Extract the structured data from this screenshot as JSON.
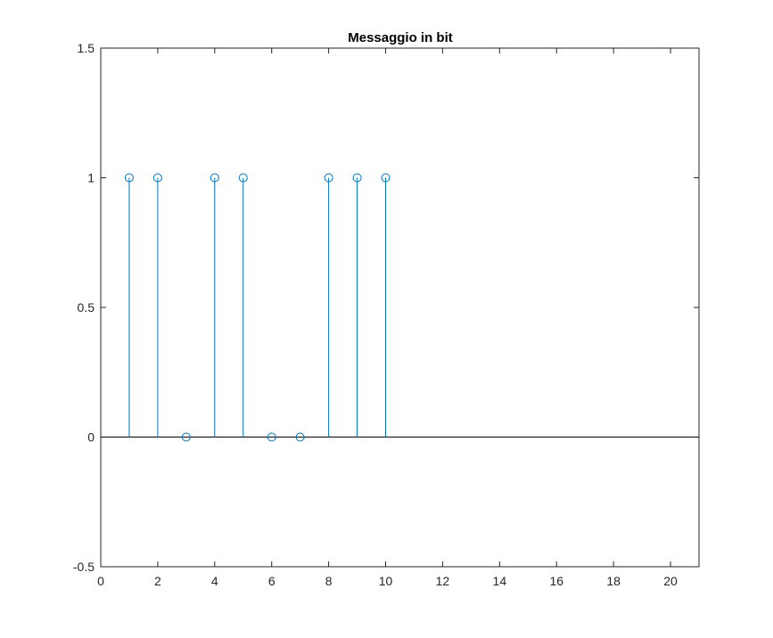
{
  "chart_data": {
    "type": "stem",
    "title": "Messaggio in bit",
    "xlabel": "",
    "ylabel": "",
    "x": [
      1,
      2,
      3,
      4,
      5,
      6,
      7,
      8,
      9,
      10
    ],
    "values": [
      1,
      1,
      0,
      1,
      1,
      0,
      0,
      1,
      1,
      1
    ],
    "xlim": [
      0,
      21
    ],
    "ylim": [
      -0.5,
      1.5
    ],
    "xticks": [
      0,
      2,
      4,
      6,
      8,
      10,
      12,
      14,
      16,
      18,
      20
    ],
    "xtick_labels": [
      "0",
      "2",
      "4",
      "6",
      "8",
      "10",
      "12",
      "14",
      "16",
      "18",
      "20"
    ],
    "yticks": [
      -0.5,
      0,
      0.5,
      1,
      1.5
    ],
    "ytick_labels": [
      "-0.5",
      "0",
      "0.5",
      "1",
      "1.5"
    ],
    "grid": false,
    "baseline": 0,
    "marker": "circle-open",
    "colors": {
      "series": "#0072BD",
      "axes": "#262626",
      "baseline": "#000000"
    }
  }
}
